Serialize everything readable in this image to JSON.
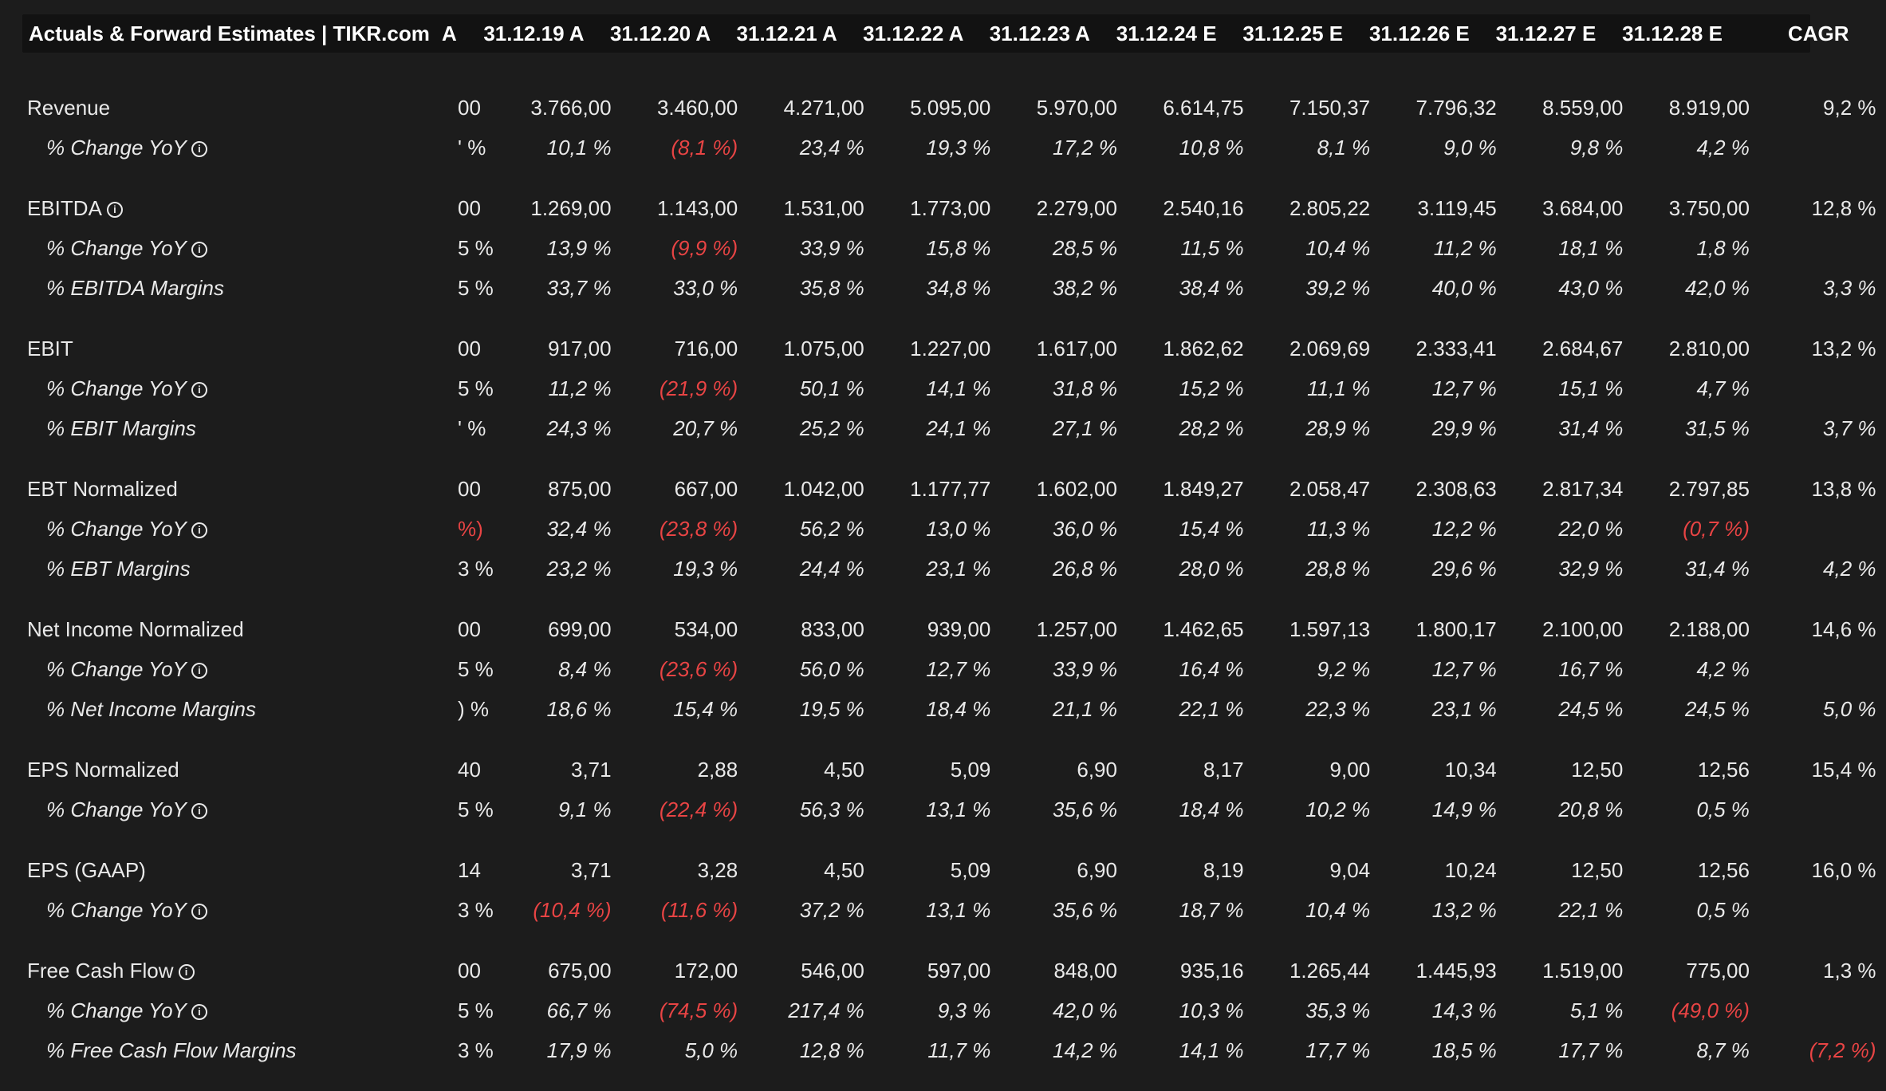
{
  "header": {
    "title": "Actuals & Forward Estimates | TIKR.com",
    "partial_col": "A",
    "columns": [
      "31.12.19 A",
      "31.12.20 A",
      "31.12.21 A",
      "31.12.22 A",
      "31.12.23 A",
      "31.12.24 E",
      "31.12.25 E",
      "31.12.26 E",
      "31.12.27 E",
      "31.12.28 E",
      "CAGR"
    ]
  },
  "icons": {
    "info": "info-circle-icon"
  },
  "colors": {
    "negative": "#e84444",
    "background": "#1c1c1c",
    "header_bg": "#121212"
  },
  "groups": [
    {
      "rows": [
        {
          "label": "Revenue",
          "sub": false,
          "info": false,
          "partial": "00",
          "values": [
            "3.766,00",
            "3.460,00",
            "4.271,00",
            "5.095,00",
            "5.970,00",
            "6.614,75",
            "7.150,37",
            "7.796,32",
            "8.559,00",
            "8.919,00",
            "9,2 %"
          ],
          "neg": []
        },
        {
          "label": "% Change YoY",
          "sub": true,
          "info": true,
          "partial": "' %",
          "values": [
            "10,1 %",
            "(8,1 %)",
            "23,4 %",
            "19,3 %",
            "17,2 %",
            "10,8 %",
            "8,1 %",
            "9,0 %",
            "9,8 %",
            "4,2 %",
            ""
          ],
          "neg": [
            1
          ]
        }
      ]
    },
    {
      "rows": [
        {
          "label": "EBITDA",
          "sub": false,
          "info": true,
          "partial": "00",
          "values": [
            "1.269,00",
            "1.143,00",
            "1.531,00",
            "1.773,00",
            "2.279,00",
            "2.540,16",
            "2.805,22",
            "3.119,45",
            "3.684,00",
            "3.750,00",
            "12,8 %"
          ],
          "neg": []
        },
        {
          "label": "% Change YoY",
          "sub": true,
          "info": true,
          "partial": "5 %",
          "values": [
            "13,9 %",
            "(9,9 %)",
            "33,9 %",
            "15,8 %",
            "28,5 %",
            "11,5 %",
            "10,4 %",
            "11,2 %",
            "18,1 %",
            "1,8 %",
            ""
          ],
          "neg": [
            1
          ]
        },
        {
          "label": "% EBITDA Margins",
          "sub": true,
          "info": false,
          "partial": "5 %",
          "values": [
            "33,7 %",
            "33,0 %",
            "35,8 %",
            "34,8 %",
            "38,2 %",
            "38,4 %",
            "39,2 %",
            "40,0 %",
            "43,0 %",
            "42,0 %",
            "3,3 %"
          ],
          "neg": []
        }
      ]
    },
    {
      "rows": [
        {
          "label": "EBIT",
          "sub": false,
          "info": false,
          "partial": "00",
          "values": [
            "917,00",
            "716,00",
            "1.075,00",
            "1.227,00",
            "1.617,00",
            "1.862,62",
            "2.069,69",
            "2.333,41",
            "2.684,67",
            "2.810,00",
            "13,2 %"
          ],
          "neg": []
        },
        {
          "label": "% Change YoY",
          "sub": true,
          "info": true,
          "partial": "5 %",
          "values": [
            "11,2 %",
            "(21,9 %)",
            "50,1 %",
            "14,1 %",
            "31,8 %",
            "15,2 %",
            "11,1 %",
            "12,7 %",
            "15,1 %",
            "4,7 %",
            ""
          ],
          "neg": [
            1
          ]
        },
        {
          "label": "% EBIT Margins",
          "sub": true,
          "info": false,
          "partial": "' %",
          "values": [
            "24,3 %",
            "20,7 %",
            "25,2 %",
            "24,1 %",
            "27,1 %",
            "28,2 %",
            "28,9 %",
            "29,9 %",
            "31,4 %",
            "31,5 %",
            "3,7 %"
          ],
          "neg": []
        }
      ]
    },
    {
      "rows": [
        {
          "label": "EBT Normalized",
          "sub": false,
          "info": false,
          "partial": "00",
          "values": [
            "875,00",
            "667,00",
            "1.042,00",
            "1.177,77",
            "1.602,00",
            "1.849,27",
            "2.058,47",
            "2.308,63",
            "2.817,34",
            "2.797,85",
            "13,8 %"
          ],
          "neg": []
        },
        {
          "label": "% Change YoY",
          "sub": true,
          "info": true,
          "partial": "%)",
          "partial_neg": true,
          "values": [
            "32,4 %",
            "(23,8 %)",
            "56,2 %",
            "13,0 %",
            "36,0 %",
            "15,4 %",
            "11,3 %",
            "12,2 %",
            "22,0 %",
            "(0,7 %)",
            ""
          ],
          "neg": [
            1,
            9
          ]
        },
        {
          "label": "% EBT Margins",
          "sub": true,
          "info": false,
          "partial": "3 %",
          "values": [
            "23,2 %",
            "19,3 %",
            "24,4 %",
            "23,1 %",
            "26,8 %",
            "28,0 %",
            "28,8 %",
            "29,6 %",
            "32,9 %",
            "31,4 %",
            "4,2 %"
          ],
          "neg": []
        }
      ]
    },
    {
      "rows": [
        {
          "label": "Net Income Normalized",
          "sub": false,
          "info": false,
          "partial": "00",
          "values": [
            "699,00",
            "534,00",
            "833,00",
            "939,00",
            "1.257,00",
            "1.462,65",
            "1.597,13",
            "1.800,17",
            "2.100,00",
            "2.188,00",
            "14,6 %"
          ],
          "neg": []
        },
        {
          "label": "% Change YoY",
          "sub": true,
          "info": true,
          "partial": "5 %",
          "values": [
            "8,4 %",
            "(23,6 %)",
            "56,0 %",
            "12,7 %",
            "33,9 %",
            "16,4 %",
            "9,2 %",
            "12,7 %",
            "16,7 %",
            "4,2 %",
            ""
          ],
          "neg": [
            1
          ]
        },
        {
          "label": "% Net Income Margins",
          "sub": true,
          "info": false,
          "partial": ") %",
          "values": [
            "18,6 %",
            "15,4 %",
            "19,5 %",
            "18,4 %",
            "21,1 %",
            "22,1 %",
            "22,3 %",
            "23,1 %",
            "24,5 %",
            "24,5 %",
            "5,0 %"
          ],
          "neg": []
        }
      ]
    },
    {
      "rows": [
        {
          "label": "EPS Normalized",
          "sub": false,
          "info": false,
          "partial": "40",
          "values": [
            "3,71",
            "2,88",
            "4,50",
            "5,09",
            "6,90",
            "8,17",
            "9,00",
            "10,34",
            "12,50",
            "12,56",
            "15,4 %"
          ],
          "neg": []
        },
        {
          "label": "% Change YoY",
          "sub": true,
          "info": true,
          "partial": "5 %",
          "values": [
            "9,1 %",
            "(22,4 %)",
            "56,3 %",
            "13,1 %",
            "35,6 %",
            "18,4 %",
            "10,2 %",
            "14,9 %",
            "20,8 %",
            "0,5 %",
            ""
          ],
          "neg": [
            1
          ]
        }
      ]
    },
    {
      "rows": [
        {
          "label": "EPS (GAAP)",
          "sub": false,
          "info": false,
          "partial": "14",
          "values": [
            "3,71",
            "3,28",
            "4,50",
            "5,09",
            "6,90",
            "8,19",
            "9,04",
            "10,24",
            "12,50",
            "12,56",
            "16,0 %"
          ],
          "neg": []
        },
        {
          "label": "% Change YoY",
          "sub": true,
          "info": true,
          "partial": "3 %",
          "values": [
            "(10,4 %)",
            "(11,6 %)",
            "37,2 %",
            "13,1 %",
            "35,6 %",
            "18,7 %",
            "10,4 %",
            "13,2 %",
            "22,1 %",
            "0,5 %",
            ""
          ],
          "neg": [
            0,
            1
          ]
        }
      ]
    },
    {
      "rows": [
        {
          "label": "Free Cash Flow",
          "sub": false,
          "info": true,
          "partial": "00",
          "values": [
            "675,00",
            "172,00",
            "546,00",
            "597,00",
            "848,00",
            "935,16",
            "1.265,44",
            "1.445,93",
            "1.519,00",
            "775,00",
            "1,3 %"
          ],
          "neg": []
        },
        {
          "label": "% Change YoY",
          "sub": true,
          "info": true,
          "partial": "5 %",
          "values": [
            "66,7 %",
            "(74,5 %)",
            "217,4 %",
            "9,3 %",
            "42,0 %",
            "10,3 %",
            "35,3 %",
            "14,3 %",
            "5,1 %",
            "(49,0 %)",
            ""
          ],
          "neg": [
            1,
            9
          ]
        },
        {
          "label": "% Free Cash Flow Margins",
          "sub": true,
          "info": false,
          "partial": "3 %",
          "values": [
            "17,9 %",
            "5,0 %",
            "12,8 %",
            "11,7 %",
            "14,2 %",
            "14,1 %",
            "17,7 %",
            "18,5 %",
            "17,7 %",
            "8,7 %",
            "(7,2 %)"
          ],
          "neg": [
            10
          ]
        }
      ]
    }
  ]
}
